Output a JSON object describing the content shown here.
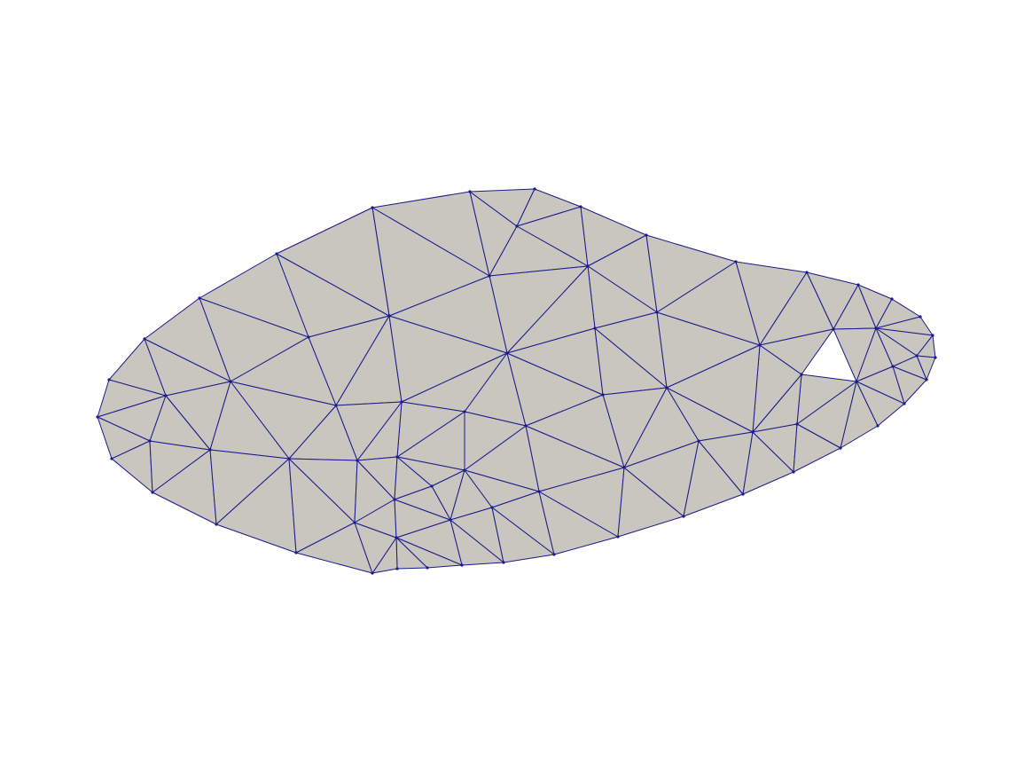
{
  "mesh": {
    "fill_color": "#c8c6bf",
    "edge_color": "#1a1a8c",
    "background_color": "#ffffff",
    "vertex_count": 88,
    "triangle_count": 134,
    "description": ""
  }
}
